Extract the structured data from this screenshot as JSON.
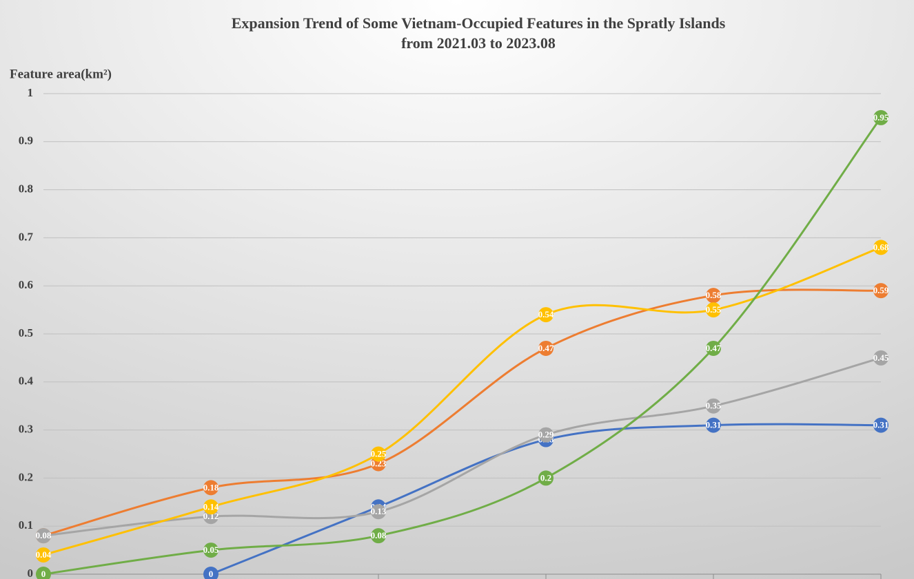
{
  "chart_data": {
    "type": "line",
    "title": [
      "Expansion Trend of Some Vietnam-Occupied Features in the Spratly Islands",
      "from 2021.03 to 2023.08"
    ],
    "y_label": "Feature area(km²)",
    "categories": [
      null,
      null,
      null,
      null,
      null,
      null
    ],
    "series": [
      {
        "color": "#4472c4",
        "values": [
          null,
          0,
          0.14,
          0.28,
          0.31,
          0.31
        ]
      },
      {
        "color": "#ed7d31",
        "values": [
          0.08,
          0.18,
          0.23,
          0.47,
          0.58,
          0.59
        ]
      },
      {
        "color": "#a5a5a5",
        "values": [
          0.08,
          0.12,
          0.13,
          0.29,
          0.35,
          0.45
        ]
      },
      {
        "color": "#ffc000",
        "values": [
          0.04,
          0.14,
          0.25,
          0.54,
          0.55,
          0.68
        ]
      },
      {
        "color": "#70ad47",
        "values": [
          0,
          0.05,
          0.08,
          0.2,
          0.47,
          0.95
        ]
      }
    ],
    "ylim": [
      0,
      1
    ],
    "yticks": [
      0,
      0.1,
      0.2,
      0.3,
      0.4,
      0.5,
      0.6,
      0.7,
      0.8,
      0.9,
      1
    ],
    "grid": true,
    "smooth": true
  }
}
